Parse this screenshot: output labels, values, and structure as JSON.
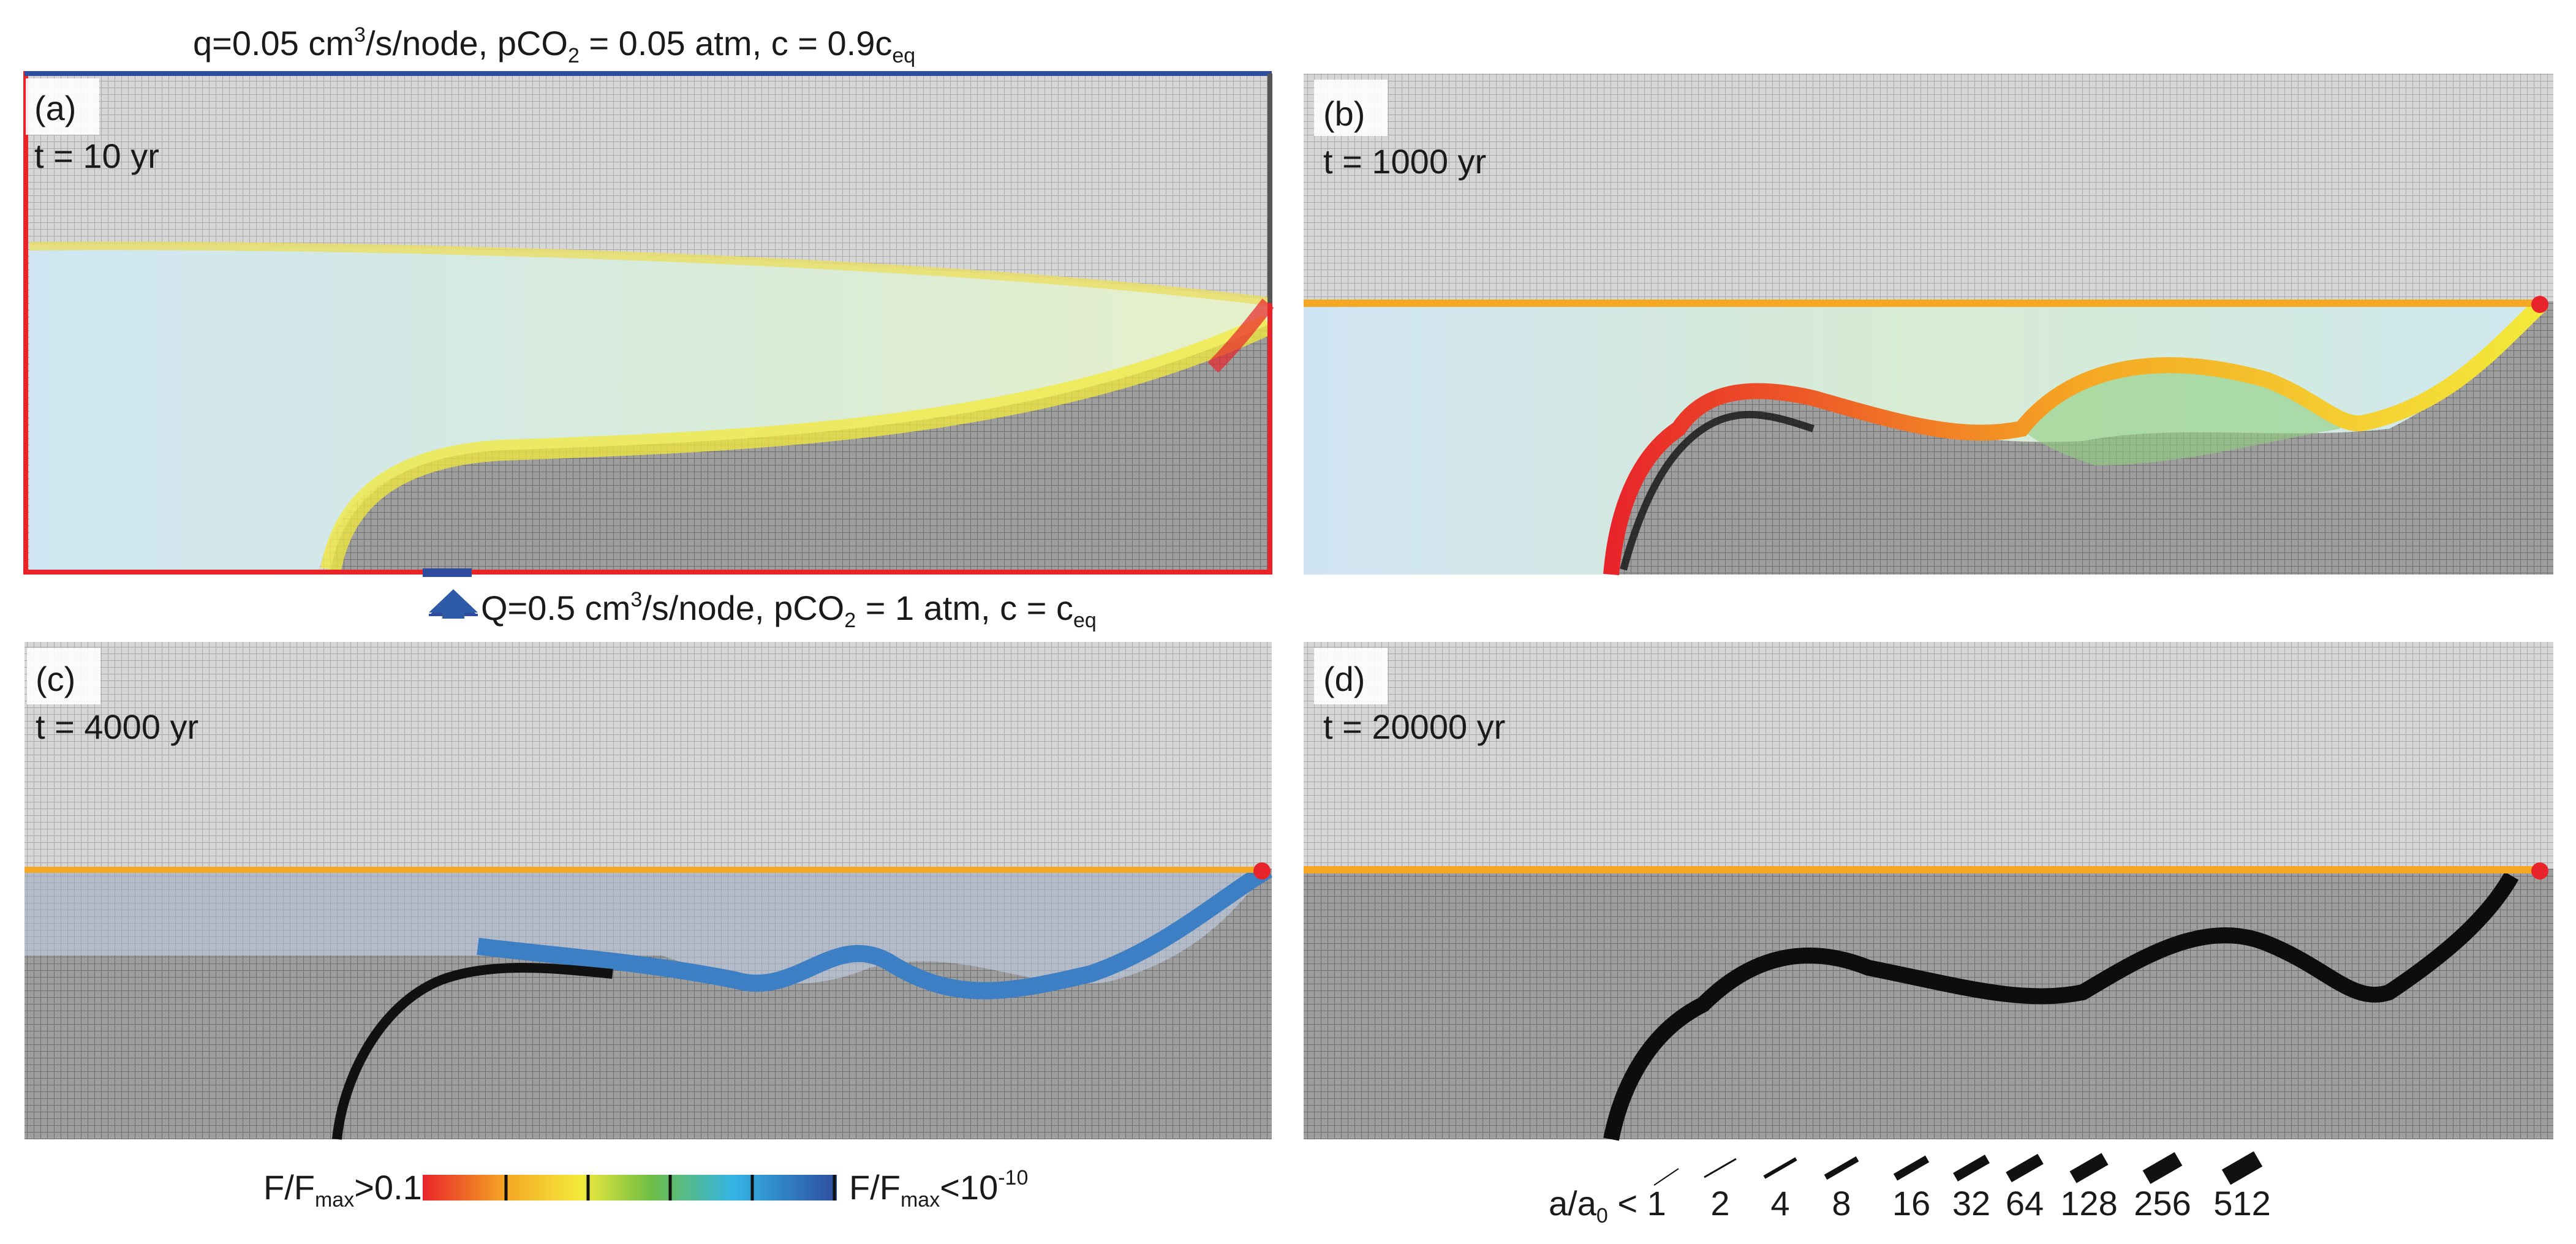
{
  "top_boundary": {
    "text": "q=0.05 cm",
    "sup": "3",
    "text2": "/s/node, pCO",
    "sub": "2",
    "text3": " = 0.05 atm, c = 0.9c",
    "sub2": "eq"
  },
  "bottom_boundary": {
    "text": "Q=0.5 cm",
    "sup": "3",
    "text2": "/s/node, pCO",
    "sub": "2",
    "text3": " = 1 atm, c = c",
    "sub2": "eq"
  },
  "panels": [
    {
      "id": "(a)",
      "time": "t = 10 yr"
    },
    {
      "id": "(b)",
      "time": "t = 1000 yr"
    },
    {
      "id": "(c)",
      "time": "t = 4000 yr"
    },
    {
      "id": "(d)",
      "time": "t = 20000 yr"
    }
  ],
  "colorbar": {
    "left_label": "F/F",
    "left_sub": "max",
    "left_tail": ">0.1",
    "right_label": "F/F",
    "right_sub": "max",
    "right_tail": "<10",
    "right_exp": "-10",
    "colors": [
      "#e8242a",
      "#f5a623",
      "#f3ea3b",
      "#6fbe44",
      "#34b5e5",
      "#2e4d9e"
    ]
  },
  "aperture_legend": {
    "label": "a/a",
    "sub": "0",
    "tail": " < 1",
    "values": [
      "2",
      "4",
      "8",
      "16",
      "32",
      "64",
      "128",
      "256",
      "512"
    ]
  }
}
